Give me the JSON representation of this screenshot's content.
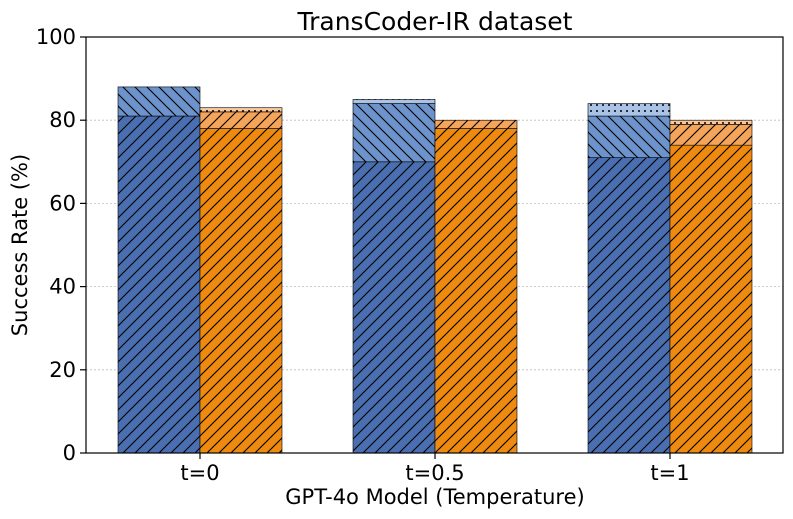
{
  "chart_data": {
    "type": "bar",
    "title": "TransCoder-IR dataset",
    "xlabel": "GPT-4o Model (Temperature)",
    "ylabel": "Success Rate (%)",
    "ylim": [
      0,
      100
    ],
    "yticks": [
      0,
      20,
      40,
      60,
      80,
      100
    ],
    "grid": "horizontal dotted",
    "categories": [
      "t=0",
      "t=0.5",
      "t=1"
    ],
    "colors": {
      "blue_dark": "#4a6fb0",
      "blue_mid": "#6c93cb",
      "blue_light": "#a9c3e6",
      "orange_dark": "#ef8a10",
      "orange_mid": "#f4a55a",
      "orange_light": "#f8c79a"
    },
    "groups": [
      {
        "name": "",
        "segments": [
          {
            "name": "",
            "color": "blue_dark",
            "hatch": "diag-right",
            "values": [
              81,
              70,
              71
            ]
          },
          {
            "name": "",
            "color": "blue_mid",
            "hatch": "diag-left",
            "values": [
              7,
              14,
              10
            ]
          },
          {
            "name": "",
            "color": "blue_light",
            "hatch": "dots",
            "values": [
              0,
              1,
              3
            ]
          }
        ]
      },
      {
        "name": "",
        "segments": [
          {
            "name": "",
            "color": "orange_dark",
            "hatch": "diag-right",
            "values": [
              78,
              78,
              74
            ]
          },
          {
            "name": "",
            "color": "orange_mid",
            "hatch": "diag-right",
            "values": [
              4,
              2,
              5
            ]
          },
          {
            "name": "",
            "color": "orange_light",
            "hatch": "dots",
            "values": [
              1,
              0,
              1
            ]
          }
        ]
      }
    ]
  }
}
